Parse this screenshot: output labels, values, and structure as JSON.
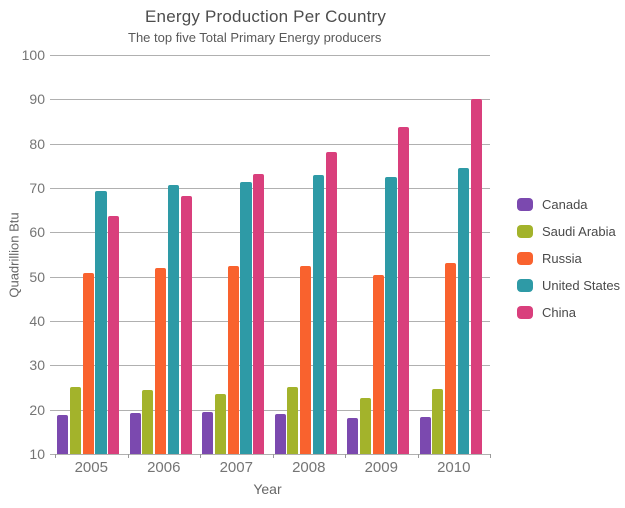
{
  "chart_data": {
    "type": "bar",
    "title": "Energy Production Per Country",
    "subtitle": "The top five Total Primary Energy producers",
    "xlabel": "Year",
    "ylabel": "Quadrillion Btu",
    "categories": [
      "2005",
      "2006",
      "2007",
      "2008",
      "2009",
      "2010"
    ],
    "series": [
      {
        "name": "Canada",
        "color": "#7b49af",
        "values": [
          18.8,
          19.2,
          19.4,
          19.0,
          18.2,
          18.3
        ]
      },
      {
        "name": "Saudi Arabia",
        "color": "#a3b32b",
        "values": [
          25.1,
          24.4,
          23.6,
          25.1,
          22.7,
          24.6
        ]
      },
      {
        "name": "Russia",
        "color": "#f9622e",
        "values": [
          50.9,
          51.9,
          52.4,
          52.4,
          50.3,
          53.2
        ]
      },
      {
        "name": "United States",
        "color": "#2e9aa6",
        "values": [
          69.3,
          70.6,
          71.3,
          72.9,
          72.5,
          74.6
        ]
      },
      {
        "name": "China",
        "color": "#d93f7c",
        "values": [
          63.8,
          68.1,
          73.1,
          78.2,
          83.7,
          90.0
        ]
      }
    ],
    "ylim": [
      10,
      100
    ],
    "yticks": [
      100,
      90,
      80,
      70,
      60,
      50,
      40,
      30,
      20,
      10
    ],
    "grid": true,
    "legend_position": "right",
    "grid_color": "#b0b0b0",
    "axis_text_color": "#757575",
    "title_color": "#4d4d4d"
  }
}
